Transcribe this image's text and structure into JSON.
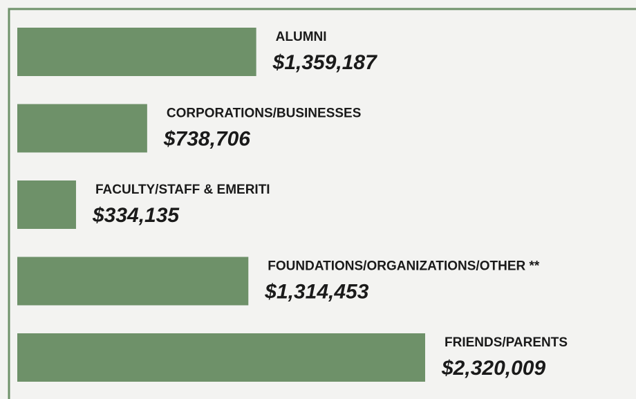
{
  "chart_data": {
    "type": "hbar",
    "categories": [
      "ALUMNI",
      "CORPORATIONS/BUSINESSES",
      "FACULTY/STAFF & EMERITI",
      "FOUNDATIONS/ORGANIZATIONS/OTHER **",
      "FRIENDS/PARENTS"
    ],
    "values": [
      1359187,
      738706,
      334135,
      1314453,
      2320009
    ],
    "value_labels": [
      "$1,359,187",
      "$738,706",
      "$334,135",
      "$1,314,453",
      "$2,320,009"
    ],
    "color": "#6e9169"
  }
}
